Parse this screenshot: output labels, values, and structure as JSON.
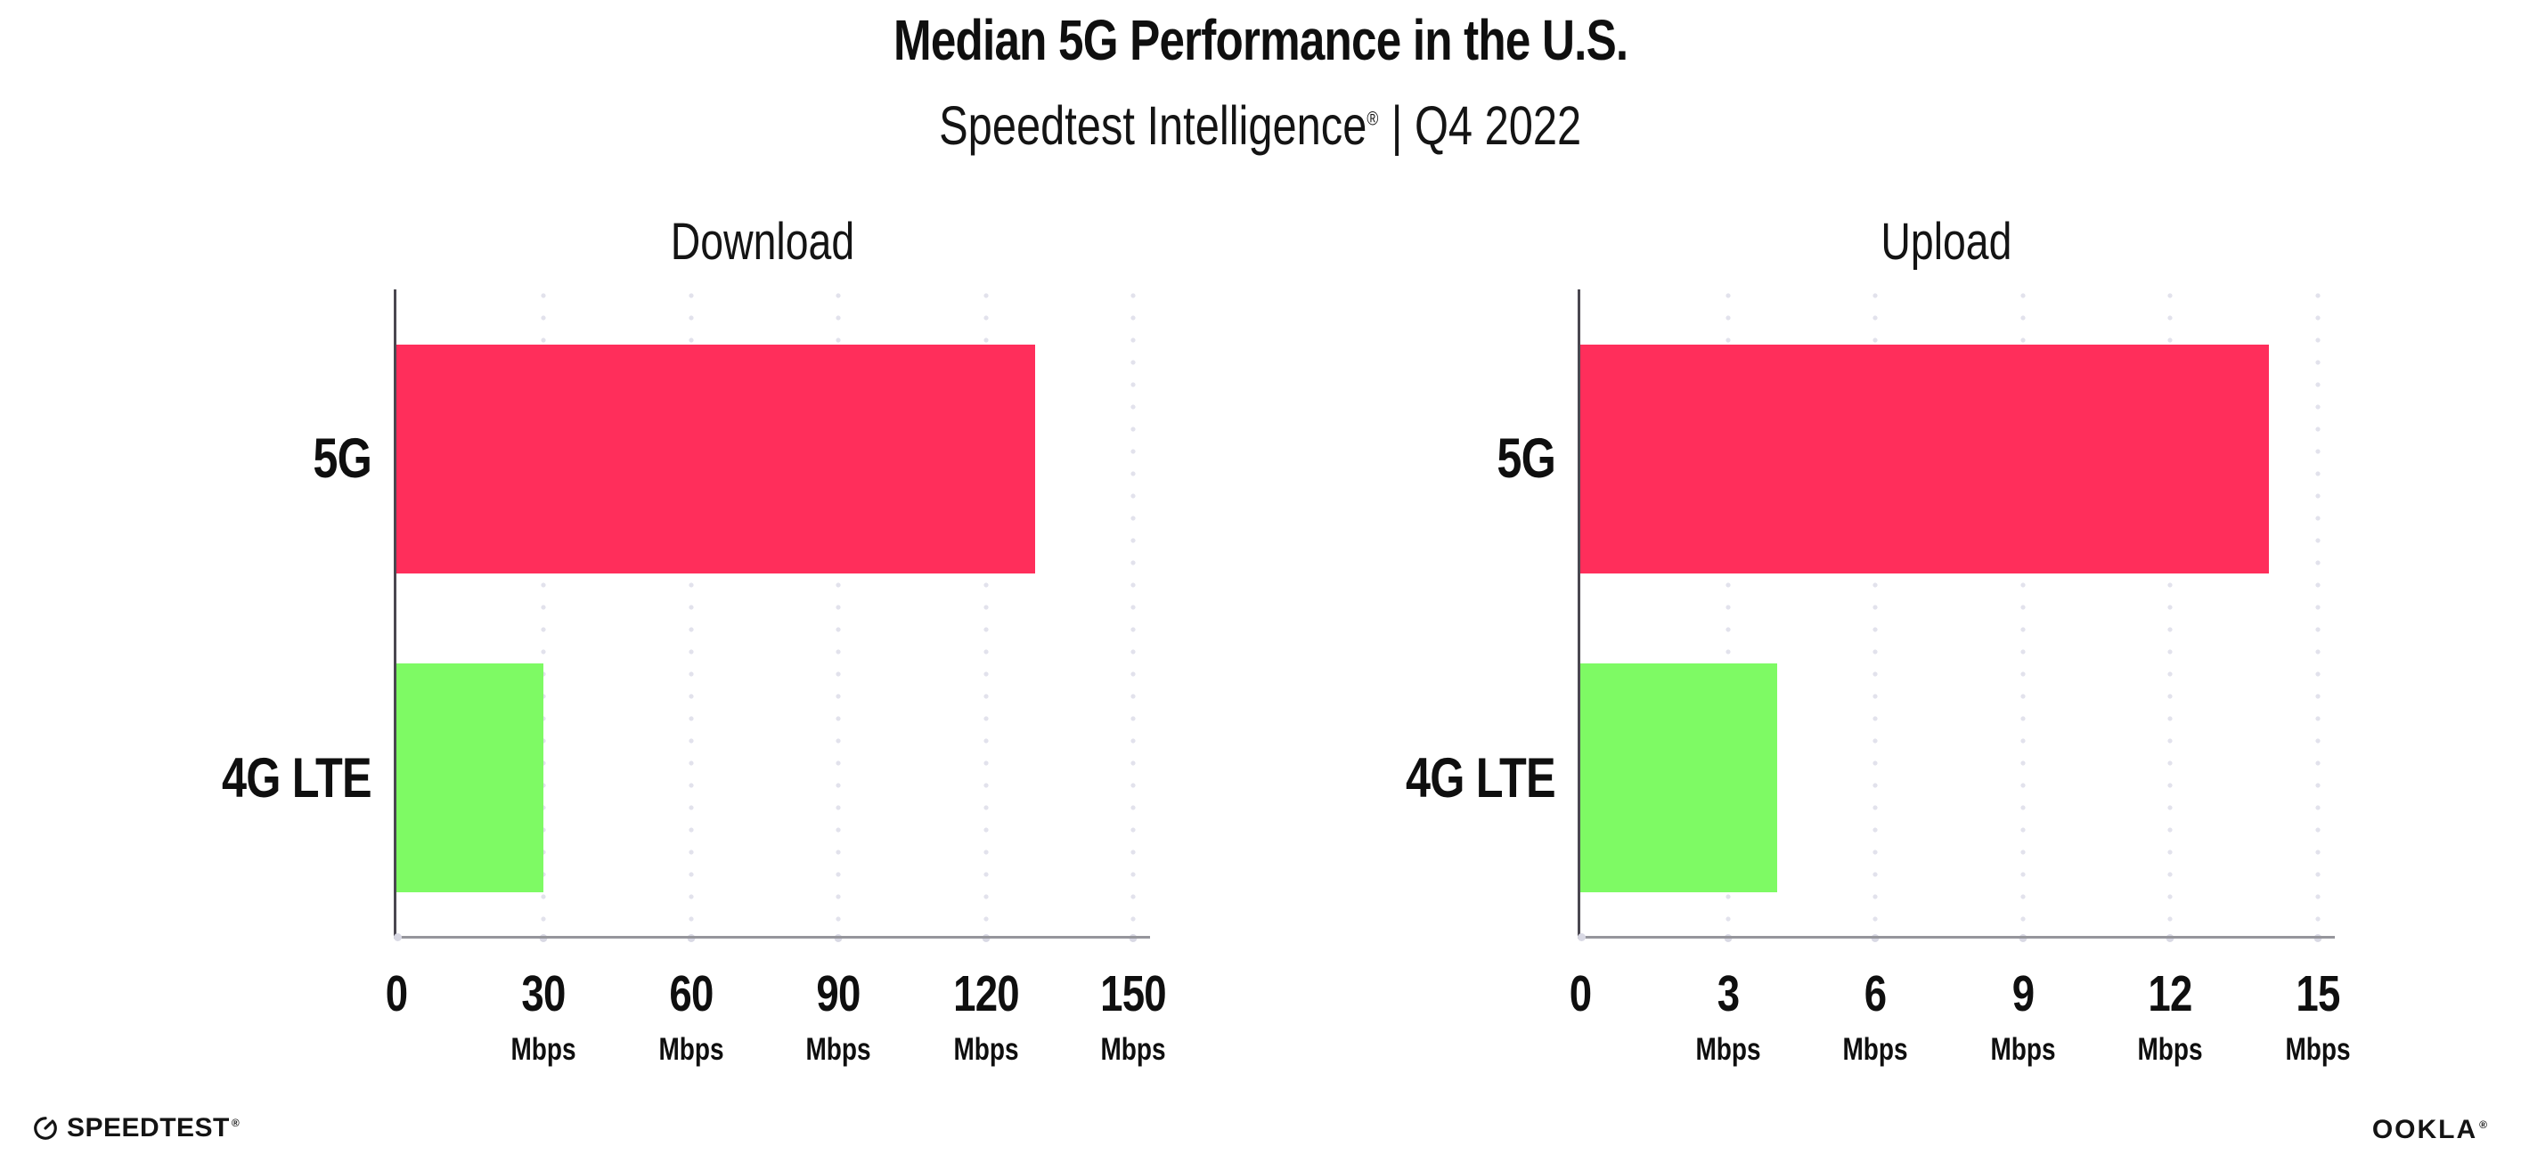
{
  "header": {
    "title": "Median 5G Performance in the U.S.",
    "subtitle_brand": "Speedtest Intelligence",
    "subtitle_reg": "®",
    "subtitle_rest": "| Q4 2022"
  },
  "footer": {
    "speedtest_label": "SPEEDTEST",
    "speedtest_reg": "®",
    "ookla_label": "OOKLA",
    "ookla_reg": "®"
  },
  "colors": {
    "bar_5g": "#FF2E5B",
    "bar_4g_lte": "#7EFA64",
    "gridline": "#E2E2EC",
    "x_axis": "#96969C",
    "y_axis": "#4A4750",
    "text": "#0F0F0F"
  },
  "chart_data": [
    {
      "type": "bar",
      "orientation": "horizontal",
      "title": "Download",
      "categories": [
        "5G",
        "4G LTE"
      ],
      "values": [
        130,
        30
      ],
      "unit": "Mbps",
      "xlim": [
        0,
        150
      ],
      "grid": "dotted-vertical",
      "legend": "none",
      "colors": [
        "#FF2E5B",
        "#7EFA64"
      ],
      "ticks": [
        {
          "value": 0,
          "label": "0",
          "unit": ""
        },
        {
          "value": 30,
          "label": "30",
          "unit": "Mbps"
        },
        {
          "value": 60,
          "label": "60",
          "unit": "Mbps"
        },
        {
          "value": 90,
          "label": "90",
          "unit": "Mbps"
        },
        {
          "value": 120,
          "label": "120",
          "unit": "Mbps"
        },
        {
          "value": 150,
          "label": "150",
          "unit": "Mbps"
        }
      ]
    },
    {
      "type": "bar",
      "orientation": "horizontal",
      "title": "Upload",
      "categories": [
        "5G",
        "4G LTE"
      ],
      "values": [
        14,
        4
      ],
      "unit": "Mbps",
      "xlim": [
        0,
        15
      ],
      "grid": "dotted-vertical",
      "legend": "none",
      "colors": [
        "#FF2E5B",
        "#7EFA64"
      ],
      "ticks": [
        {
          "value": 0,
          "label": "0",
          "unit": ""
        },
        {
          "value": 3,
          "label": "3",
          "unit": "Mbps"
        },
        {
          "value": 6,
          "label": "6",
          "unit": "Mbps"
        },
        {
          "value": 9,
          "label": "9",
          "unit": "Mbps"
        },
        {
          "value": 12,
          "label": "12",
          "unit": "Mbps"
        },
        {
          "value": 15,
          "label": "15",
          "unit": "Mbps"
        }
      ]
    }
  ]
}
